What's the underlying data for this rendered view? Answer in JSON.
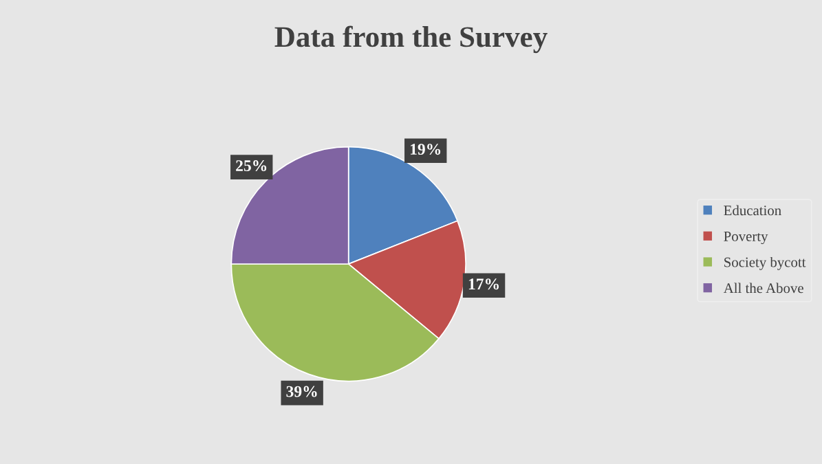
{
  "chart_data": {
    "type": "pie",
    "title": "Data from the Survey",
    "categories": [
      "Education",
      "Poverty",
      "Society bycott",
      "All the Above"
    ],
    "values": [
      19,
      17,
      39,
      25
    ],
    "colors": [
      "#4f81bd",
      "#c0504d",
      "#9bbb59",
      "#8064a2"
    ],
    "value_labels": [
      "19%",
      "17%",
      "39%",
      "25%"
    ],
    "legend": "right"
  }
}
